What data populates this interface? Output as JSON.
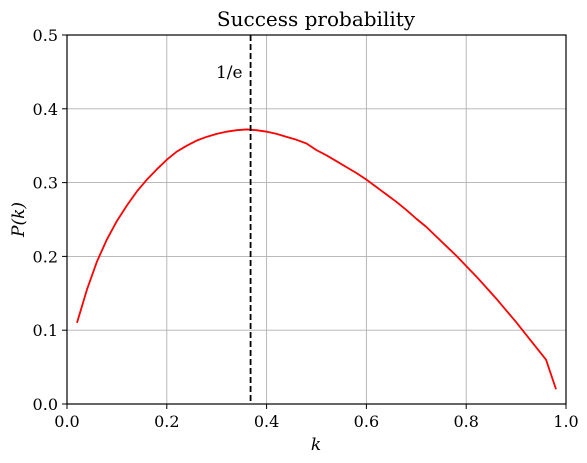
{
  "chart_data": {
    "type": "line",
    "title": "Success probability",
    "xlabel": "k",
    "ylabel": "P(k)",
    "xlim": [
      0,
      1
    ],
    "ylim": [
      0,
      0.5
    ],
    "x_ticks": [
      0.0,
      0.2,
      0.4,
      0.6,
      0.8,
      1.0
    ],
    "x_tick_labels": [
      "0.0",
      "0.2",
      "0.4",
      "0.6",
      "0.8",
      "1.0"
    ],
    "y_ticks": [
      0.0,
      0.1,
      0.2,
      0.3,
      0.4,
      0.5
    ],
    "y_tick_labels": [
      "0.0",
      "0.1",
      "0.2",
      "0.3",
      "0.4",
      "0.5"
    ],
    "grid": true,
    "series": [
      {
        "color": "#ff0000",
        "x": [
          0.02,
          0.04,
          0.06,
          0.08,
          0.1,
          0.12,
          0.14,
          0.16,
          0.18,
          0.2,
          0.22,
          0.24,
          0.26,
          0.28,
          0.3,
          0.32,
          0.34,
          0.36,
          0.38,
          0.4,
          0.42,
          0.44,
          0.46,
          0.48,
          0.5,
          0.52,
          0.54,
          0.56,
          0.58,
          0.6,
          0.62,
          0.64,
          0.66,
          0.68,
          0.7,
          0.72,
          0.74,
          0.76,
          0.78,
          0.8,
          0.82,
          0.84,
          0.86,
          0.88,
          0.9,
          0.92,
          0.94,
          0.96,
          0.98
        ],
        "y": [
          0.11,
          0.155,
          0.193,
          0.223,
          0.248,
          0.269,
          0.288,
          0.304,
          0.318,
          0.331,
          0.342,
          0.35,
          0.357,
          0.362,
          0.366,
          0.369,
          0.371,
          0.372,
          0.371,
          0.369,
          0.366,
          0.362,
          0.358,
          0.353,
          0.344,
          0.337,
          0.329,
          0.321,
          0.313,
          0.304,
          0.294,
          0.284,
          0.274,
          0.263,
          0.251,
          0.24,
          0.227,
          0.214,
          0.201,
          0.187,
          0.173,
          0.158,
          0.143,
          0.127,
          0.111,
          0.094,
          0.077,
          0.06,
          0.02
        ]
      }
    ],
    "vline": {
      "x": 0.3679,
      "style": "dashed",
      "color": "#000000",
      "label": "1/e",
      "label_y": 0.45
    }
  }
}
